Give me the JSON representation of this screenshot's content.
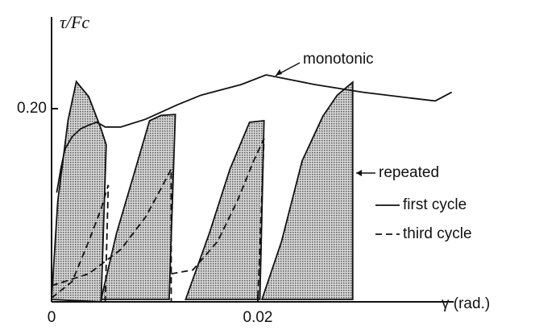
{
  "chart_data": {
    "type": "line",
    "ylabel": "τ/Fc",
    "xlabel": "γ (rad.)",
    "xlim": [
      0,
      0.039
    ],
    "ylim": [
      0,
      0.295
    ],
    "xticks": [
      0,
      0.02
    ],
    "yticks": [
      {
        "value": 0.2,
        "label": "0.20"
      }
    ],
    "annotation": "repeated",
    "series": [
      {
        "name": "monotonic",
        "color": "#111",
        "style": "solid",
        "x": [
          0.0005,
          0.0009,
          0.0013,
          0.002,
          0.0028,
          0.0036,
          0.0044,
          0.0052,
          0.0067,
          0.0091,
          0.0122,
          0.0145,
          0.0184,
          0.0208,
          0.0255,
          0.0302,
          0.0348,
          0.0372,
          0.0388
        ],
        "values": [
          0.113,
          0.138,
          0.158,
          0.171,
          0.179,
          0.183,
          0.186,
          0.181,
          0.181,
          0.189,
          0.204,
          0.214,
          0.225,
          0.235,
          0.225,
          0.217,
          0.211,
          0.208,
          0.217
        ]
      },
      {
        "name": "first cycle",
        "color": "#111",
        "style": "solid",
        "fill": "#b8b8b8",
        "loops": [
          {
            "x": [
              0,
              0.0006,
              0.0016,
              0.0024,
              0.0036,
              0.0048,
              0.0053,
              0.0048
            ],
            "values": [
              0.0025,
              0.104,
              0.188,
              0.228,
              0.2125,
              0.179,
              0.1625,
              0
            ]
          },
          {
            "x": [
              0.0048,
              0.0063,
              0.0079,
              0.0095,
              0.0106,
              0.012,
              0.0114
            ],
            "values": [
              0.0025,
              0.071,
              0.129,
              0.1875,
              0.193,
              0.194,
              0.0025
            ]
          },
          {
            "x": [
              0.013,
              0.0153,
              0.0173,
              0.0192,
              0.0206,
              0.0202
            ],
            "values": [
              0.0025,
              0.071,
              0.1375,
              0.186,
              0.1875,
              0.0025
            ]
          },
          {
            "x": [
              0.0204,
              0.0223,
              0.0243,
              0.0263,
              0.0277,
              0.0292,
              0.0292
            ],
            "values": [
              0.0025,
              0.0625,
              0.146,
              0.192,
              0.214,
              0.2275,
              0.0025
            ]
          }
        ]
      },
      {
        "name": "third cycle",
        "color": "#111",
        "style": "dashed",
        "x": [
          0,
          0.002,
          0.0036,
          0.0048,
          0.0055,
          0.0052,
          null,
          0,
          0.0036,
          0.0067,
          0.0091,
          0.0106,
          0.0116,
          0.0116,
          null,
          0.0116,
          0.0137,
          0.0161,
          0.018,
          0.0196,
          0.0206,
          0.02
        ],
        "values": [
          0.004,
          0.021,
          0.0625,
          0.096,
          0.121,
          0,
          null,
          0.0167,
          0.029,
          0.054,
          0.0875,
          0.117,
          0.1375,
          0,
          null,
          0.029,
          0.033,
          0.0625,
          0.104,
          0.146,
          0.169,
          0.0025
        ]
      }
    ]
  }
}
